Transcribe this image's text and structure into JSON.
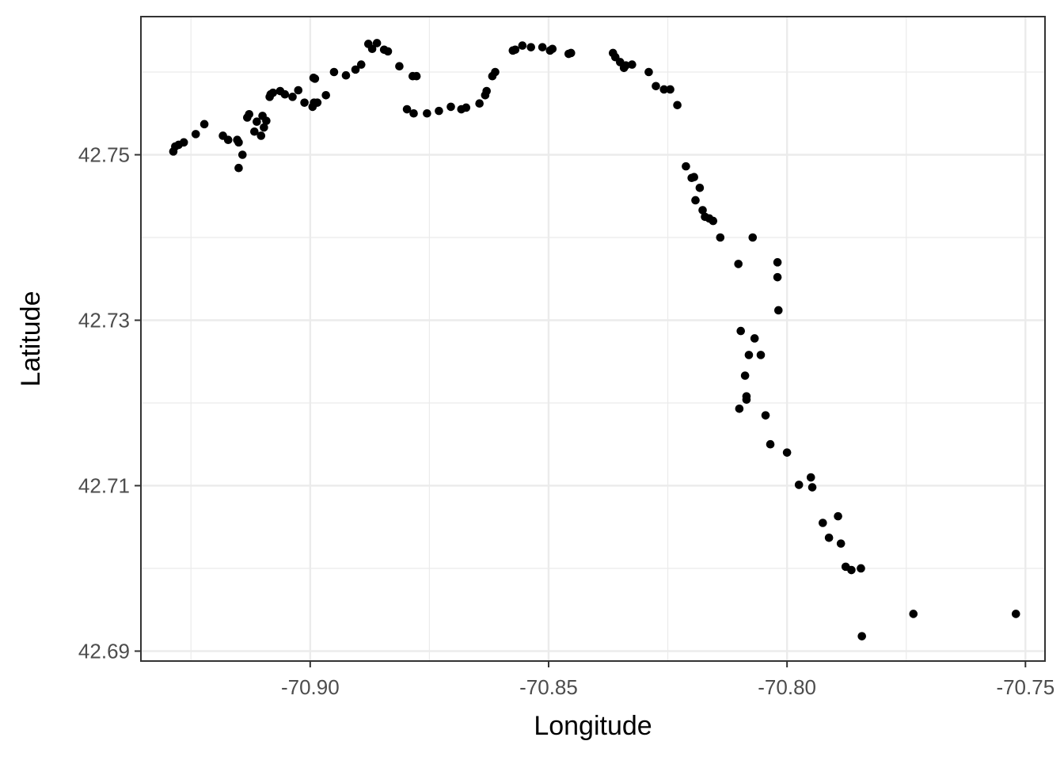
{
  "chart_data": {
    "type": "scatter",
    "title": "",
    "xlabel": "Longitude",
    "ylabel": "Latitude",
    "xlim": [
      -70.9355,
      -70.7459
    ],
    "ylim": [
      42.6888,
      42.7667
    ],
    "x_ticks": [
      -70.9,
      -70.85,
      -70.8,
      -70.75
    ],
    "x_tick_labels": [
      "-70.90",
      "-70.85",
      "-70.80",
      "-70.75"
    ],
    "y_ticks": [
      42.69,
      42.71,
      42.73,
      42.75
    ],
    "y_tick_labels": [
      "42.69",
      "42.71",
      "42.73",
      "42.75"
    ],
    "x_minor": [
      -70.925,
      -70.875,
      -70.825,
      -70.775
    ],
    "y_minor": [
      42.7,
      42.72,
      42.74,
      42.76
    ],
    "grid": true,
    "colors": {
      "points": "#000000",
      "grid": "#ebebeb",
      "panel_border": "#333333",
      "background": "#ffffff"
    },
    "x": [
      -70.9287,
      -70.9283,
      -70.9276,
      -70.9265,
      -70.924,
      -70.9222,
      -70.9183,
      -70.9172,
      -70.915,
      -70.915,
      -70.9153,
      -70.9142,
      -70.9132,
      -70.9128,
      -70.9117,
      -70.9112,
      -70.9103,
      -70.91,
      -70.9097,
      -70.9092,
      -70.9085,
      -70.9083,
      -70.9078,
      -70.9063,
      -70.9053,
      -70.9037,
      -70.9025,
      -70.9012,
      -70.8995,
      -70.8993,
      -70.8992,
      -70.899,
      -70.8985,
      -70.8967,
      -70.895,
      -70.8925,
      -70.8905,
      -70.8893,
      -70.8878,
      -70.887,
      -70.886,
      -70.8845,
      -70.8837,
      -70.8813,
      -70.8797,
      -70.8785,
      -70.8783,
      -70.8777,
      -70.8755,
      -70.873,
      -70.8705,
      -70.8683,
      -70.8673,
      -70.8645,
      -70.8633,
      -70.863,
      -70.8618,
      -70.8612,
      -70.8575,
      -70.857,
      -70.8555,
      -70.8537,
      -70.8513,
      -70.8497,
      -70.8492,
      -70.8458,
      -70.8453,
      -70.8365,
      -70.836,
      -70.835,
      -70.8342,
      -70.8338,
      -70.8325,
      -70.829,
      -70.8275,
      -70.8258,
      -70.8245,
      -70.823,
      -70.8212,
      -70.82,
      -70.8195,
      -70.8192,
      -70.8183,
      -70.8177,
      -70.8172,
      -70.8163,
      -70.8155,
      -70.814,
      -70.8102,
      -70.81,
      -70.8097,
      -70.8088,
      -70.8085,
      -70.8085,
      -70.808,
      -70.8072,
      -70.8068,
      -70.8055,
      -70.8045,
      -70.8035,
      -70.802,
      -70.802,
      -70.8018,
      -70.8,
      -70.7975,
      -70.795,
      -70.7947,
      -70.7925,
      -70.7912,
      -70.7893,
      -70.7887,
      -70.7877,
      -70.7865,
      -70.7845,
      -70.7843,
      -70.7735,
      -70.752
    ],
    "y": [
      42.7504,
      42.751,
      42.7512,
      42.7515,
      42.7525,
      42.7537,
      42.7523,
      42.7518,
      42.7515,
      42.7484,
      42.7518,
      42.75,
      42.7545,
      42.7549,
      42.7528,
      42.754,
      42.7523,
      42.7547,
      42.7533,
      42.7541,
      42.757,
      42.7573,
      42.7575,
      42.7577,
      42.7573,
      42.757,
      42.7578,
      42.7563,
      42.7558,
      42.7593,
      42.7563,
      42.7592,
      42.7563,
      42.7572,
      42.76,
      42.7596,
      42.7603,
      42.7609,
      42.7634,
      42.7628,
      42.7635,
      42.7627,
      42.7625,
      42.7607,
      42.7555,
      42.7595,
      42.755,
      42.7595,
      42.755,
      42.7553,
      42.7558,
      42.7555,
      42.7557,
      42.7562,
      42.7572,
      42.7577,
      42.7595,
      42.76,
      42.7626,
      42.7627,
      42.7632,
      42.763,
      42.763,
      42.7626,
      42.7628,
      42.7622,
      42.7623,
      42.7623,
      42.7618,
      42.7612,
      42.7605,
      42.7608,
      42.7609,
      42.76,
      42.7583,
      42.7579,
      42.7579,
      42.756,
      42.7486,
      42.7472,
      42.7473,
      42.7445,
      42.746,
      42.7433,
      42.7425,
      42.7423,
      42.742,
      42.74,
      42.7368,
      42.7193,
      42.7287,
      42.7233,
      42.7208,
      42.7204,
      42.7258,
      42.74,
      42.7278,
      42.7258,
      42.7185,
      42.715,
      42.737,
      42.7352,
      42.7312,
      42.714,
      42.7101,
      42.711,
      42.7098,
      42.7055,
      42.7037,
      42.7063,
      42.703,
      42.7002,
      42.6998,
      42.7,
      42.6918,
      42.6945,
      42.6945
    ],
    "point_color": "#000000"
  }
}
